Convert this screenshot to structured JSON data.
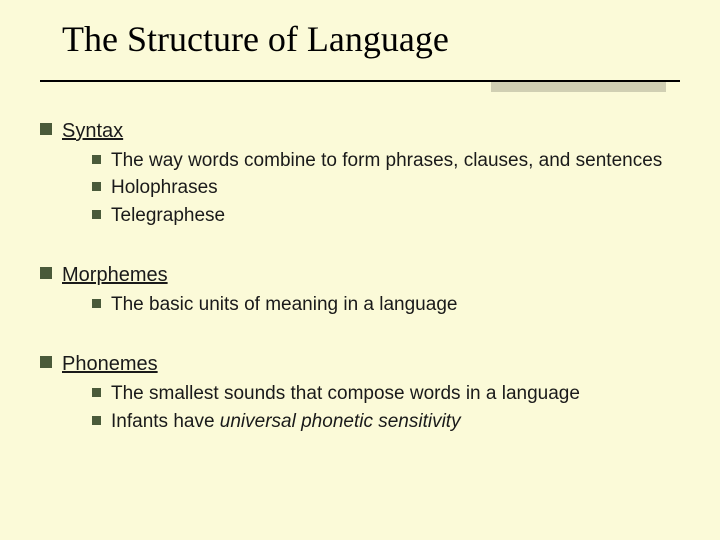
{
  "title": "The Structure of Language",
  "colors": {
    "background": "#fbfad8",
    "bullet": "#4a5a3a",
    "text": "#1a1a1a",
    "underline": "#000000",
    "side_shadow": "#b9b9a0"
  },
  "typography": {
    "title_font": "Times New Roman",
    "title_size_pt": 36,
    "body_font": "Arial",
    "body_size_pt": 19
  },
  "sections": [
    {
      "heading": "Syntax",
      "items": [
        {
          "text": "The way words combine to form phrases, clauses, and sentences"
        },
        {
          "text": "Holophrases"
        },
        {
          "text": "Telegraphese"
        }
      ]
    },
    {
      "heading": "Morphemes",
      "items": [
        {
          "text": "The basic units of meaning in a language"
        }
      ]
    },
    {
      "heading": "Phonemes",
      "items": [
        {
          "text": "The smallest sounds that compose words in a language"
        },
        {
          "prefix": "Infants have ",
          "italic": "universal phonetic sensitivity"
        }
      ]
    }
  ]
}
